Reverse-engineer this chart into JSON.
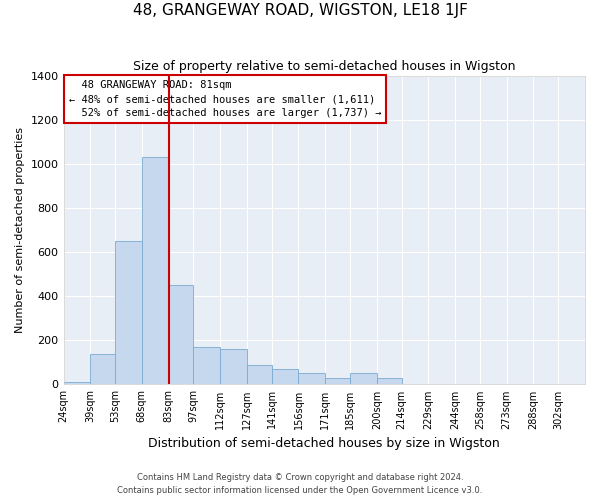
{
  "title": "48, GRANGEWAY ROAD, WIGSTON, LE18 1JF",
  "subtitle": "Size of property relative to semi-detached houses in Wigston",
  "xlabel": "Distribution of semi-detached houses by size in Wigston",
  "ylabel": "Number of semi-detached properties",
  "property_label": "48 GRANGEWAY ROAD: 81sqm",
  "pct_smaller": 48,
  "pct_larger": 52,
  "n_smaller": 1611,
  "n_larger": 1737,
  "bins": [
    24,
    39,
    53,
    68,
    83,
    97,
    112,
    127,
    141,
    156,
    171,
    185,
    200,
    214,
    229,
    244,
    258,
    273,
    288,
    302,
    317
  ],
  "counts": [
    10,
    140,
    650,
    1030,
    450,
    170,
    160,
    90,
    70,
    50,
    30,
    50,
    30,
    0,
    0,
    0,
    0,
    0,
    0,
    0
  ],
  "bar_color": "#c5d8ee",
  "bar_edge_color": "#7aaad0",
  "vline_color": "#cc0000",
  "vline_x": 83,
  "ylim": [
    0,
    1400
  ],
  "yticks": [
    0,
    200,
    400,
    600,
    800,
    1000,
    1200,
    1400
  ],
  "background_color": "#e8eef6",
  "grid_color": "#ffffff",
  "annotation_box_color": "#cc0000",
  "footer1": "Contains HM Land Registry data © Crown copyright and database right 2024.",
  "footer2": "Contains public sector information licensed under the Open Government Licence v3.0."
}
